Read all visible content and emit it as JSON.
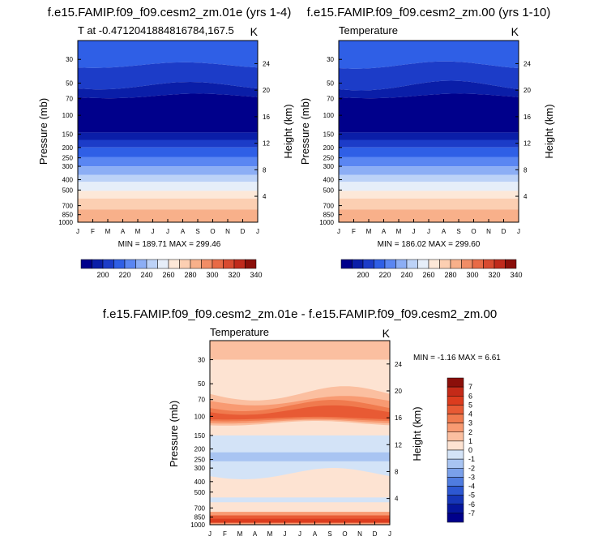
{
  "panels": [
    {
      "title": "f.e15.FAMIP.f09_f09.cesm2_zm.01e (yrs 1-4)",
      "subtitle_left": "T at -0.4712041884816784,167.5",
      "subtitle_right": "K",
      "y_left_label": "Pressure (mb)",
      "y_right_label": "Height (km)",
      "minmax": "MIN = 189.71 MAX = 299.46"
    },
    {
      "title": "f.e15.FAMIP.f09_f09.cesm2_zm.00 (yrs 1-10)",
      "subtitle_left": "Temperature",
      "subtitle_right": "K",
      "y_left_label": "Pressure (mb)",
      "y_right_label": "Height (km)",
      "minmax": "MIN = 186.02 MAX = 299.60"
    },
    {
      "title": "f.e15.FAMIP.f09_f09.cesm2_zm.01e - f.e15.FAMIP.f09_f09.cesm2_zm.00",
      "subtitle_left": "Temperature",
      "subtitle_right": "K",
      "y_left_label": "Pressure (mb)",
      "y_right_label": "Height (km)",
      "minmax": "MIN =  -1.16 MAX =   6.61"
    }
  ],
  "axes": {
    "months": [
      "J",
      "F",
      "M",
      "A",
      "M",
      "J",
      "J",
      "A",
      "S",
      "O",
      "N",
      "D",
      "J"
    ],
    "pressure_ticks": [
      "30",
      "50",
      "70",
      "100",
      "150",
      "200",
      "250",
      "300",
      "400",
      "500",
      "700",
      "850",
      "1000"
    ],
    "height_ticks": [
      "24",
      "20",
      "16",
      "12",
      "8",
      "4"
    ]
  },
  "colorbars": {
    "temperature": {
      "labels": [
        "200",
        "220",
        "240",
        "260",
        "280",
        "300",
        "320",
        "340"
      ],
      "colors": [
        "#00008b",
        "#0a1ea8",
        "#1c3cc8",
        "#2f5fe6",
        "#5a86f2",
        "#8caef5",
        "#bcd2f7",
        "#e6eef9",
        "#fde8d8",
        "#fccfb2",
        "#f8b08a",
        "#f18d66",
        "#e86a46",
        "#d84a30",
        "#c02a1c",
        "#8b0f0a"
      ]
    },
    "difference": {
      "labels": [
        "7",
        "6",
        "5",
        "4",
        "3",
        "2",
        "1",
        "0",
        "-1",
        "-2",
        "-3",
        "-4",
        "-5",
        "-6",
        "-7"
      ],
      "colors": [
        "#8b0f0a",
        "#c42a18",
        "#dc3c1e",
        "#e85a34",
        "#f07a4e",
        "#f89a72",
        "#fbbfa0",
        "#fde3d2",
        "#d3e3f7",
        "#a8c4f2",
        "#7aa0ea",
        "#4f7ce0",
        "#2d58d2",
        "#1636b8",
        "#05159c",
        "#00008b"
      ]
    }
  },
  "chart_data": [
    {
      "type": "heatmap",
      "title": "f.e15.FAMIP.f09_f09.cesm2_zm.01e (yrs 1-4)",
      "x": [
        "J",
        "F",
        "M",
        "A",
        "M",
        "J",
        "J",
        "A",
        "S",
        "O",
        "N",
        "D",
        "J"
      ],
      "ylabel": "Pressure (mb)",
      "y2label": "Height (km)",
      "units": "K",
      "min": 189.71,
      "max": 299.46,
      "levels": [
        200,
        210,
        220,
        230,
        240,
        250,
        260,
        270,
        280,
        290,
        300,
        310,
        320,
        330,
        340
      ],
      "y_scale": "log",
      "ylim": [
        1000,
        20
      ],
      "contour_band_boundaries_mb": [
        {
          "p_top": 20,
          "p_bottom": 35,
          "value_range": [
            220,
            230
          ]
        },
        {
          "p_top": 35,
          "p_bottom": 52,
          "value_range": [
            210,
            220
          ]
        },
        {
          "p_top": 52,
          "p_bottom": 145,
          "value_range": [
            190,
            200
          ]
        },
        {
          "p_top": 145,
          "p_bottom": 250,
          "value_range": [
            210,
            230
          ]
        },
        {
          "p_top": 250,
          "p_bottom": 500,
          "value_range": [
            230,
            270
          ]
        },
        {
          "p_top": 500,
          "p_bottom": 1000,
          "value_range": [
            270,
            300
          ]
        }
      ]
    },
    {
      "type": "heatmap",
      "title": "f.e15.FAMIP.f09_f09.cesm2_zm.00 (yrs 1-10)",
      "x": [
        "J",
        "F",
        "M",
        "A",
        "M",
        "J",
        "J",
        "A",
        "S",
        "O",
        "N",
        "D",
        "J"
      ],
      "ylabel": "Pressure (mb)",
      "y2label": "Height (km)",
      "units": "K",
      "min": 186.02,
      "max": 299.6,
      "levels": [
        200,
        210,
        220,
        230,
        240,
        250,
        260,
        270,
        280,
        290,
        300,
        310,
        320,
        330,
        340
      ],
      "y_scale": "log",
      "ylim": [
        1000,
        20
      ]
    },
    {
      "type": "heatmap",
      "title": "f.e15.FAMIP.f09_f09.cesm2_zm.01e - f.e15.FAMIP.f09_f09.cesm2_zm.00",
      "x": [
        "J",
        "F",
        "M",
        "A",
        "M",
        "J",
        "J",
        "A",
        "S",
        "O",
        "N",
        "D",
        "J"
      ],
      "ylabel": "Pressure (mb)",
      "y2label": "Height (km)",
      "units": "K",
      "min": -1.16,
      "max": 6.61,
      "levels": [
        -7,
        -6,
        -5,
        -4,
        -3,
        -2,
        -1,
        0,
        1,
        2,
        3,
        4,
        5,
        6,
        7
      ],
      "y_scale": "log",
      "ylim": [
        1000,
        20
      ]
    }
  ]
}
